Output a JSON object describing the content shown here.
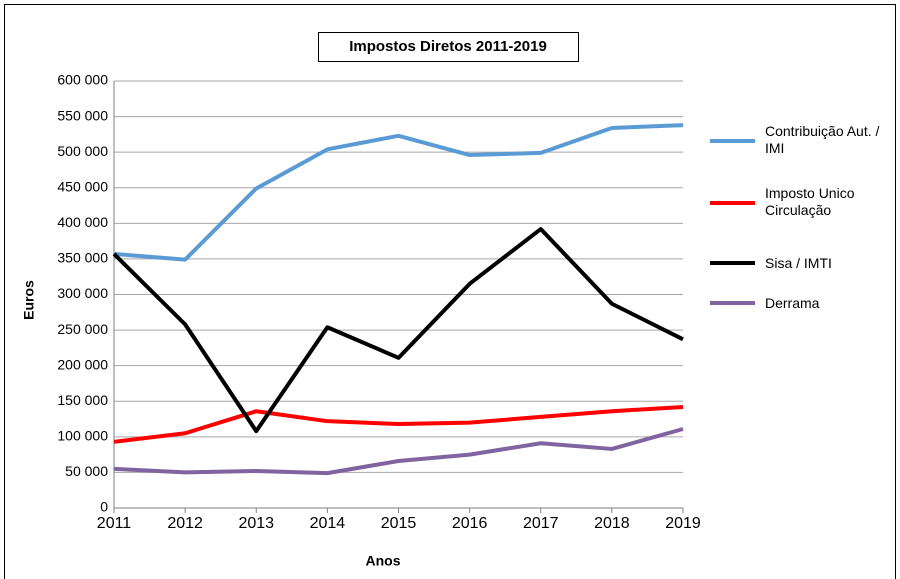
{
  "chart_data": {
    "type": "line",
    "title": "Impostos Diretos 2011-2019",
    "x_label": "Anos",
    "y_label": "Euros",
    "x": [
      2011,
      2012,
      2013,
      2014,
      2015,
      2016,
      2017,
      2018,
      2019
    ],
    "xlim": [
      2011,
      2019
    ],
    "xticks": [
      2011,
      2012,
      2013,
      2014,
      2015,
      2016,
      2017,
      2018,
      2019
    ],
    "ylim": [
      0,
      600000
    ],
    "yticks": [
      0,
      {
        "value": 50000,
        "label": "50 000"
      },
      {
        "value": 100000,
        "label": "100 000"
      },
      {
        "value": 150000,
        "label": "150 000"
      },
      {
        "value": 200000,
        "label": "200 000"
      },
      {
        "value": 250000,
        "label": "250 000"
      },
      {
        "value": 300000,
        "label": "300 000"
      },
      {
        "value": 350000,
        "label": "350 000"
      },
      {
        "value": 400000,
        "label": "400 000"
      },
      {
        "value": 450000,
        "label": "450 000"
      },
      {
        "value": 500000,
        "label": "500 000"
      },
      {
        "value": 550000,
        "label": "550 000"
      },
      {
        "value": 600000,
        "label": "600 000"
      }
    ],
    "grid": true,
    "legend": "right",
    "series": [
      {
        "name": "Contribuição Aut. / IMI",
        "color": "#5b9bd5",
        "values": [
          357000,
          349000,
          449000,
          504000,
          523000,
          496000,
          499000,
          534000,
          538000
        ]
      },
      {
        "name": "Imposto Unico Circulação",
        "color": "#ff0000",
        "values": [
          93000,
          105000,
          136000,
          122000,
          118000,
          120000,
          128000,
          136000,
          142000
        ]
      },
      {
        "name": "Sisa / IMTI",
        "color": "#000000",
        "values": [
          357000,
          258000,
          108000,
          254000,
          211000,
          315000,
          392000,
          287000,
          237000
        ]
      },
      {
        "name": "Derrama",
        "color": "#8064a2",
        "values": [
          55000,
          50000,
          52000,
          49000,
          66000,
          75000,
          91000,
          83000,
          111000
        ]
      }
    ]
  }
}
